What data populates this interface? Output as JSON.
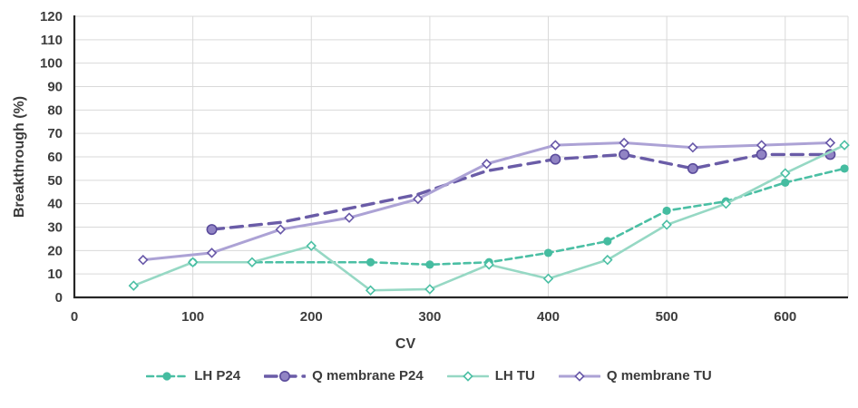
{
  "colors": {
    "background": "#ffffff",
    "grid": "#d9d9d9",
    "axis_line": "#262626",
    "text": "#3b3b3b"
  },
  "chart_data": {
    "type": "line",
    "title": "",
    "xlabel": "CV",
    "ylabel": "Breakthrough (%)",
    "xlim": [
      0,
      653
    ],
    "ylim": [
      0,
      120
    ],
    "x_ticks": [
      0,
      100,
      200,
      300,
      400,
      500,
      600
    ],
    "y_ticks": [
      0,
      10,
      20,
      30,
      40,
      50,
      60,
      70,
      80,
      90,
      100,
      110,
      120
    ],
    "grid": true,
    "legend_position": "bottom",
    "series": [
      {
        "name": "LH P24",
        "slug": "lh-p24",
        "line": {
          "color": "#4bbfa4",
          "width": 2.6,
          "dash": "7 4.5"
        },
        "marker": {
          "shape": "circle",
          "size": 4.6,
          "fill": "#45bca0",
          "stroke": "none",
          "stroke_width": 0
        },
        "points": [
          [
            100,
            15
          ],
          [
            250,
            15
          ],
          [
            300,
            14
          ],
          [
            350,
            15
          ],
          [
            400,
            19
          ],
          [
            450,
            24
          ],
          [
            500,
            37
          ],
          [
            550,
            41
          ],
          [
            600,
            49
          ],
          [
            650,
            55
          ]
        ]
      },
      {
        "name": "Q membrane P24",
        "slug": "q-membrane-p24",
        "line": {
          "color": "#6a5ca7",
          "width": 3.4,
          "dash": "13 8"
        },
        "marker": {
          "shape": "circle",
          "size": 5.2,
          "fill": "#9184c4",
          "stroke": "#5a4b9b",
          "stroke_width": 1.6
        },
        "points": [
          [
            116,
            29
          ],
          [
            406,
            59
          ],
          [
            464,
            61
          ],
          [
            522,
            55
          ],
          [
            580,
            61
          ],
          [
            638,
            61
          ]
        ],
        "line_path": [
          [
            116,
            29
          ],
          [
            174,
            32
          ],
          [
            232,
            38
          ],
          [
            290,
            44
          ],
          [
            348,
            54
          ],
          [
            406,
            59
          ],
          [
            464,
            61
          ],
          [
            522,
            55
          ],
          [
            580,
            61
          ],
          [
            638,
            61
          ]
        ]
      },
      {
        "name": "LH TU",
        "slug": "lh-tu",
        "line": {
          "color": "#96d8c4",
          "width": 2.6,
          "dash": ""
        },
        "marker": {
          "shape": "diamond",
          "size": 4.6,
          "fill": "#ffffff",
          "stroke": "#4bbfa4",
          "stroke_width": 1.6
        },
        "points": [
          [
            50,
            5
          ],
          [
            100,
            15
          ],
          [
            150,
            15
          ],
          [
            200,
            22
          ],
          [
            250,
            3
          ],
          [
            300,
            3.5
          ],
          [
            350,
            14
          ],
          [
            400,
            8
          ],
          [
            450,
            16
          ],
          [
            500,
            31
          ],
          [
            550,
            40
          ],
          [
            600,
            53
          ],
          [
            650,
            65
          ]
        ]
      },
      {
        "name": "Q membrane TU",
        "slug": "q-membrane-tu",
        "line": {
          "color": "#aca2d5",
          "width": 3,
          "dash": ""
        },
        "marker": {
          "shape": "diamond",
          "size": 4.6,
          "fill": "#ffffff",
          "stroke": "#6757a8",
          "stroke_width": 1.6
        },
        "points": [
          [
            58,
            16
          ],
          [
            116,
            19
          ],
          [
            174,
            29
          ],
          [
            232,
            34
          ],
          [
            290,
            42
          ],
          [
            348,
            57
          ],
          [
            406,
            65
          ],
          [
            464,
            66
          ],
          [
            522,
            64
          ],
          [
            580,
            65
          ],
          [
            638,
            66
          ]
        ]
      }
    ]
  }
}
